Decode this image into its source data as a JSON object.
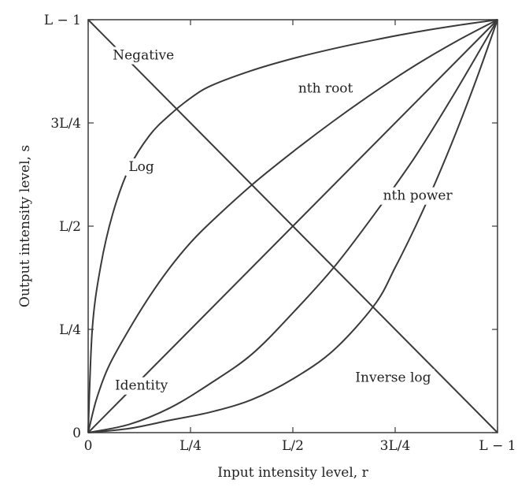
{
  "chart_data": {
    "type": "line",
    "title": "",
    "xlabel": "Input intensity level, r",
    "ylabel": "Output intensity level, s",
    "xlim": [
      0,
      1
    ],
    "ylim": [
      0,
      1
    ],
    "grid": false,
    "x_ticks": [
      {
        "value": 0,
        "label": "0"
      },
      {
        "value": 0.25,
        "label": "L/4"
      },
      {
        "value": 0.5,
        "label": "L/2"
      },
      {
        "value": 0.75,
        "label": "3L/4"
      },
      {
        "value": 1,
        "label": "L − 1"
      }
    ],
    "y_ticks": [
      {
        "value": 0,
        "label": "0"
      },
      {
        "value": 0.25,
        "label": "L/4"
      },
      {
        "value": 0.5,
        "label": "L/2"
      },
      {
        "value": 0.75,
        "label": "3L/4"
      },
      {
        "value": 1,
        "label": "L − 1"
      }
    ],
    "series": [
      {
        "name": "Negative",
        "x": [
          0,
          1
        ],
        "y": [
          1,
          0
        ]
      },
      {
        "name": "Log",
        "x": [
          0,
          0.01,
          0.03,
          0.06,
          0.1,
          0.15,
          0.2,
          0.25,
          0.3,
          0.4,
          0.5,
          0.6,
          0.7,
          0.8,
          0.9,
          1
        ],
        "y": [
          0,
          0.25,
          0.4,
          0.53,
          0.64,
          0.72,
          0.77,
          0.81,
          0.84,
          0.877,
          0.906,
          0.93,
          0.951,
          0.97,
          0.986,
          1
        ]
      },
      {
        "name": "nth root",
        "x": [
          0,
          0.02,
          0.05,
          0.1,
          0.15,
          0.2,
          0.25,
          0.3,
          0.4,
          0.5,
          0.6,
          0.7,
          0.8,
          0.9,
          1
        ],
        "y": [
          0,
          0.08,
          0.16,
          0.25,
          0.33,
          0.4,
          0.46,
          0.51,
          0.6,
          0.68,
          0.755,
          0.825,
          0.89,
          0.948,
          1
        ]
      },
      {
        "name": "Identity",
        "x": [
          0,
          1
        ],
        "y": [
          0,
          1
        ]
      },
      {
        "name": "nth power",
        "x": [
          0,
          0.1,
          0.2,
          0.3,
          0.4,
          0.5,
          0.6,
          0.7,
          0.8,
          0.9,
          1
        ],
        "y": [
          0,
          0.02,
          0.06,
          0.12,
          0.19,
          0.29,
          0.4,
          0.53,
          0.67,
          0.83,
          1
        ]
      },
      {
        "name": "Inverse log",
        "x": [
          0,
          0.1,
          0.2,
          0.3,
          0.4,
          0.5,
          0.6,
          0.7,
          0.75,
          0.8,
          0.85,
          0.9,
          0.95,
          1
        ],
        "y": [
          0,
          0.01,
          0.03,
          0.05,
          0.08,
          0.13,
          0.2,
          0.31,
          0.4,
          0.5,
          0.61,
          0.73,
          0.86,
          1
        ]
      }
    ],
    "annotations": [
      {
        "series": "Negative",
        "text": "Negative",
        "x": 0.135,
        "y": 0.915
      },
      {
        "series": "Log",
        "text": "Log",
        "x": 0.13,
        "y": 0.645
      },
      {
        "series": "nth root",
        "text": "nth root",
        "x": 0.58,
        "y": 0.835
      },
      {
        "series": "nth power",
        "text": "nth power",
        "x": 0.805,
        "y": 0.575
      },
      {
        "series": "Identity",
        "text": "Identity",
        "x": 0.13,
        "y": 0.115
      },
      {
        "series": "Inverse log",
        "text": "Inverse log",
        "x": 0.745,
        "y": 0.135
      }
    ]
  }
}
